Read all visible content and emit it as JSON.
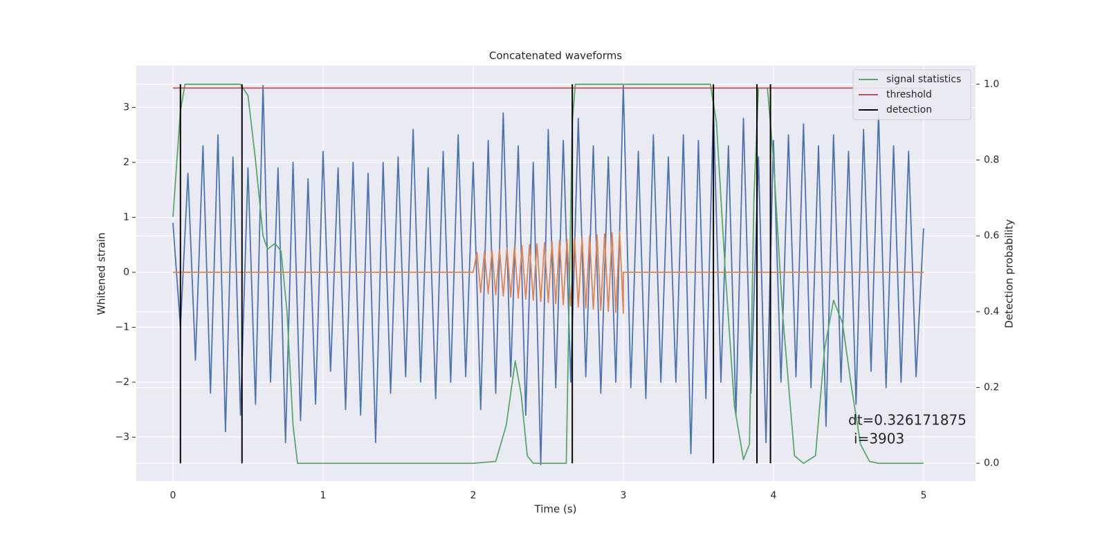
{
  "chart_data": {
    "type": "line",
    "title": "Concatenated waveforms",
    "xlabel": "Time (s)",
    "ylabel": "Whitened strain",
    "y2label": "Detection probability",
    "xlim": [
      -0.244,
      5.346
    ],
    "ylim": [
      -3.8,
      3.76
    ],
    "y2lim": [
      -0.047,
      1.049
    ],
    "xticks": [
      0,
      1,
      2,
      3,
      4,
      5
    ],
    "yticks": [
      {
        "value": -3,
        "label": "−3"
      },
      {
        "value": -2,
        "label": "−2"
      },
      {
        "value": -1,
        "label": "−1"
      },
      0,
      1,
      2,
      3
    ],
    "y2ticks": [
      {
        "value": 0,
        "label": "0.0"
      },
      0.2,
      0.4,
      0.6,
      0.8,
      {
        "value": 1,
        "label": "1.0"
      }
    ],
    "grid": true,
    "legend": "upper right",
    "annotation": [
      "dt=0.326171875",
      "i=3903"
    ],
    "series": [
      {
        "color": "#4c72b0",
        "axis": "y",
        "x": [
          0,
          0.05,
          0.1,
          0.15,
          0.2,
          0.25,
          0.3,
          0.35,
          0.4,
          0.45,
          0.5,
          0.55,
          0.6,
          0.65,
          0.7,
          0.75,
          0.8,
          0.85,
          0.9,
          0.95,
          1,
          1.05,
          1.1,
          1.15,
          1.2,
          1.25,
          1.3,
          1.35,
          1.4,
          1.45,
          1.5,
          1.55,
          1.6,
          1.65,
          1.7,
          1.75,
          1.8,
          1.85,
          1.9,
          1.95,
          2,
          2.05,
          2.1,
          2.15,
          2.2,
          2.25,
          2.3,
          2.35,
          2.4,
          2.45,
          2.5,
          2.55,
          2.6,
          2.65,
          2.7,
          2.75,
          2.8,
          2.85,
          2.9,
          2.95,
          3,
          3.05,
          3.1,
          3.15,
          3.2,
          3.25,
          3.3,
          3.35,
          3.4,
          3.45,
          3.5,
          3.55,
          3.6,
          3.65,
          3.7,
          3.75,
          3.8,
          3.85,
          3.9,
          3.95,
          4,
          4.05,
          4.1,
          4.15,
          4.2,
          4.25,
          4.3,
          4.35,
          4.4,
          4.45,
          4.5,
          4.55,
          4.6,
          4.65,
          4.7,
          4.75,
          4.8,
          4.85,
          4.9,
          4.95,
          5
        ],
        "values": [
          0.9,
          -1.0,
          1.8,
          -1.6,
          2.3,
          -2.2,
          2.5,
          -2.9,
          2.1,
          -2.6,
          1.9,
          -2.4,
          3.4,
          -2.0,
          1.9,
          -3.1,
          2.0,
          -2.7,
          1.7,
          -2.4,
          2.2,
          -1.8,
          1.9,
          -2.5,
          2.0,
          -2.6,
          1.8,
          -3.1,
          2.0,
          -2.2,
          2.1,
          -1.9,
          2.6,
          -2.0,
          1.9,
          -2.3,
          2.2,
          -2.0,
          2.5,
          -1.9,
          2.0,
          -2.5,
          2.4,
          -2.2,
          2.9,
          -1.9,
          2.3,
          -2.6,
          2.0,
          -3.5,
          2.6,
          -2.1,
          2.4,
          -2.0,
          2.8,
          -1.9,
          2.3,
          -2.2,
          2.1,
          -2.0,
          3.4,
          -2.1,
          2.2,
          -2.3,
          2.5,
          -2.0,
          2.1,
          -2.0,
          2.5,
          -3.3,
          2.4,
          -2.3,
          3.0,
          -2.0,
          2.3,
          -2.6,
          2.8,
          -2.2,
          2.1,
          -3.1,
          2.4,
          -2.0,
          2.5,
          -1.9,
          2.7,
          -2.1,
          2.3,
          -2.8,
          2.5,
          -2.0,
          2.2,
          -2.4,
          2.6,
          -1.8,
          2.9,
          -2.1,
          2.3,
          -2.0,
          2.2,
          -1.9,
          0.8
        ]
      },
      {
        "color": "#dd8452",
        "axis": "y",
        "x": [
          0,
          2,
          2.025,
          2.05,
          2.075,
          2.1,
          2.125,
          2.15,
          2.175,
          2.2,
          2.225,
          2.25,
          2.275,
          2.3,
          2.325,
          2.35,
          2.375,
          2.4,
          2.425,
          2.45,
          2.475,
          2.5,
          2.525,
          2.55,
          2.575,
          2.6,
          2.625,
          2.65,
          2.675,
          2.7,
          2.725,
          2.75,
          2.775,
          2.8,
          2.825,
          2.85,
          2.875,
          2.9,
          2.925,
          2.95,
          2.975,
          3,
          3,
          5
        ],
        "values": [
          0,
          0,
          0.36,
          -0.37,
          0.38,
          -0.39,
          0.4,
          -0.41,
          0.42,
          -0.43,
          0.44,
          -0.45,
          0.46,
          -0.47,
          0.48,
          -0.49,
          0.5,
          -0.51,
          0.52,
          -0.53,
          0.54,
          -0.55,
          0.56,
          -0.57,
          0.58,
          -0.59,
          0.6,
          -0.61,
          0.62,
          -0.63,
          0.64,
          -0.65,
          0.66,
          -0.67,
          0.68,
          -0.69,
          0.7,
          -0.71,
          0.72,
          -0.73,
          0.74,
          -0.75,
          0,
          0
        ]
      },
      {
        "name": "signal statistics",
        "color": "#55a868",
        "axis": "y2",
        "x": [
          0,
          0.05,
          0.08,
          0.45,
          0.5,
          0.55,
          0.6,
          0.63,
          0.68,
          0.72,
          0.76,
          0.8,
          0.83,
          1,
          2,
          2.15,
          2.22,
          2.28,
          2.32,
          2.36,
          2.4,
          2.62,
          2.66,
          2.68,
          3.58,
          3.62,
          3.68,
          3.74,
          3.8,
          3.84,
          3.87,
          3.9,
          3.96,
          4.0,
          4.06,
          4.14,
          4.2,
          4.28,
          4.34,
          4.4,
          4.46,
          4.52,
          4.58,
          4.64,
          4.7,
          5
        ],
        "values": [
          0.65,
          0.93,
          1.0,
          1.0,
          0.97,
          0.8,
          0.6,
          0.565,
          0.58,
          0.56,
          0.4,
          0.1,
          0.0,
          0,
          0,
          0.005,
          0.1,
          0.27,
          0.18,
          0.02,
          0,
          0,
          0.9,
          1.0,
          1.0,
          0.9,
          0.5,
          0.15,
          0.01,
          0.05,
          0.7,
          0.99,
          0.99,
          0.8,
          0.4,
          0.02,
          0,
          0.02,
          0.3,
          0.43,
          0.37,
          0.2,
          0.05,
          0.005,
          0,
          0
        ]
      },
      {
        "name": "threshold",
        "color": "#c44e52",
        "axis": "y2",
        "x": [
          0,
          5
        ],
        "values": [
          0.99,
          0.99
        ]
      },
      {
        "name": "detection",
        "color": "#000000",
        "axis": "y2",
        "style": "vline",
        "x": [
          0.05,
          0.46,
          2.66,
          3.6,
          3.89,
          3.98
        ]
      }
    ]
  }
}
